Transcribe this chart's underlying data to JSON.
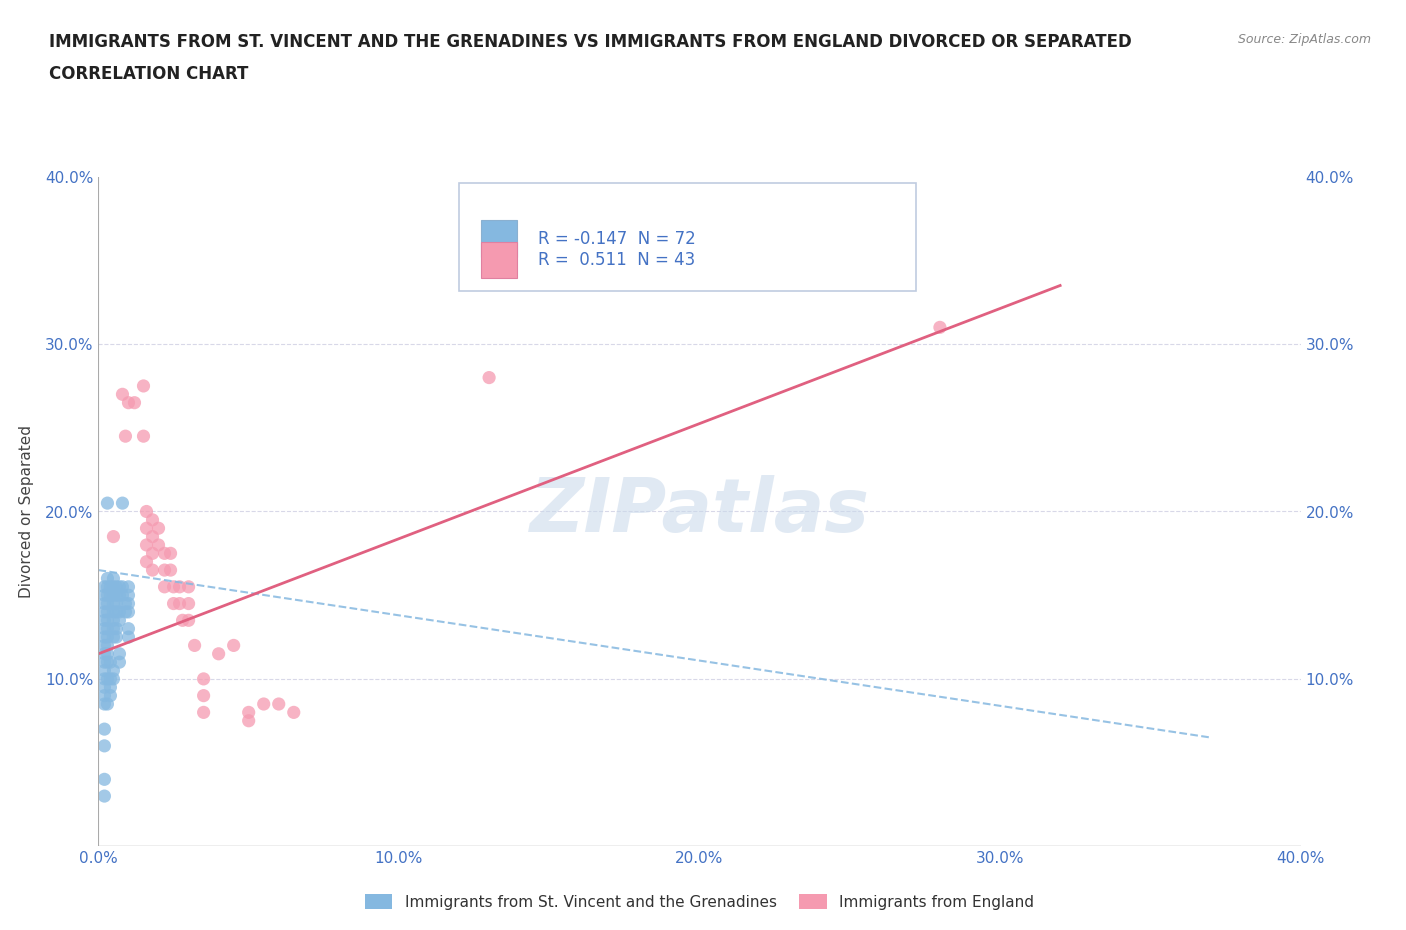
{
  "title_line1": "IMMIGRANTS FROM ST. VINCENT AND THE GRENADINES VS IMMIGRANTS FROM ENGLAND DIVORCED OR SEPARATED",
  "title_line2": "CORRELATION CHART",
  "source": "Source: ZipAtlas.com",
  "ylabel": "Divorced or Separated",
  "xlim": [
    0.0,
    0.4
  ],
  "ylim": [
    0.0,
    0.4
  ],
  "xticks": [
    0.0,
    0.1,
    0.2,
    0.3,
    0.4
  ],
  "yticks": [
    0.1,
    0.2,
    0.3,
    0.4
  ],
  "xticklabels": [
    "0.0%",
    "10.0%",
    "20.0%",
    "30.0%",
    "40.0%"
  ],
  "yticklabels": [
    "10.0%",
    "20.0%",
    "30.0%",
    "40.0%"
  ],
  "watermark": "ZIPatlas",
  "series1_label": "Immigrants from St. Vincent and the Grenadines",
  "series2_label": "Immigrants from England",
  "series1_color": "#85b8e0",
  "series2_color": "#f59ab0",
  "background_color": "#ffffff",
  "grid_color": "#d8d8e8",
  "axis_color": "#4472c4",
  "title_color": "#222222",
  "legend_box_color": "#e8eef8",
  "legend_border_color": "#b8c8e0",
  "series1_points": [
    [
      0.002,
      0.155
    ],
    [
      0.002,
      0.15
    ],
    [
      0.002,
      0.145
    ],
    [
      0.002,
      0.14
    ],
    [
      0.002,
      0.135
    ],
    [
      0.002,
      0.13
    ],
    [
      0.002,
      0.125
    ],
    [
      0.002,
      0.12
    ],
    [
      0.002,
      0.115
    ],
    [
      0.002,
      0.11
    ],
    [
      0.002,
      0.105
    ],
    [
      0.002,
      0.1
    ],
    [
      0.002,
      0.095
    ],
    [
      0.002,
      0.09
    ],
    [
      0.002,
      0.085
    ],
    [
      0.003,
      0.16
    ],
    [
      0.003,
      0.155
    ],
    [
      0.003,
      0.15
    ],
    [
      0.003,
      0.145
    ],
    [
      0.003,
      0.14
    ],
    [
      0.003,
      0.135
    ],
    [
      0.003,
      0.13
    ],
    [
      0.003,
      0.125
    ],
    [
      0.003,
      0.12
    ],
    [
      0.003,
      0.115
    ],
    [
      0.003,
      0.11
    ],
    [
      0.005,
      0.16
    ],
    [
      0.005,
      0.155
    ],
    [
      0.005,
      0.15
    ],
    [
      0.005,
      0.145
    ],
    [
      0.005,
      0.14
    ],
    [
      0.005,
      0.135
    ],
    [
      0.005,
      0.13
    ],
    [
      0.005,
      0.125
    ],
    [
      0.006,
      0.155
    ],
    [
      0.006,
      0.15
    ],
    [
      0.006,
      0.145
    ],
    [
      0.006,
      0.14
    ],
    [
      0.007,
      0.155
    ],
    [
      0.007,
      0.15
    ],
    [
      0.008,
      0.205
    ],
    [
      0.002,
      0.07
    ],
    [
      0.002,
      0.06
    ],
    [
      0.002,
      0.04
    ],
    [
      0.002,
      0.03
    ],
    [
      0.003,
      0.1
    ],
    [
      0.003,
      0.085
    ],
    [
      0.004,
      0.155
    ],
    [
      0.004,
      0.15
    ],
    [
      0.004,
      0.11
    ],
    [
      0.004,
      0.1
    ],
    [
      0.004,
      0.095
    ],
    [
      0.004,
      0.09
    ],
    [
      0.003,
      0.205
    ],
    [
      0.005,
      0.105
    ],
    [
      0.005,
      0.1
    ],
    [
      0.006,
      0.13
    ],
    [
      0.006,
      0.125
    ],
    [
      0.007,
      0.14
    ],
    [
      0.007,
      0.135
    ],
    [
      0.007,
      0.115
    ],
    [
      0.007,
      0.11
    ],
    [
      0.008,
      0.155
    ],
    [
      0.008,
      0.15
    ],
    [
      0.009,
      0.145
    ],
    [
      0.009,
      0.14
    ],
    [
      0.01,
      0.155
    ],
    [
      0.01,
      0.15
    ],
    [
      0.01,
      0.145
    ],
    [
      0.01,
      0.14
    ],
    [
      0.01,
      0.13
    ],
    [
      0.01,
      0.125
    ]
  ],
  "series2_points": [
    [
      0.005,
      0.185
    ],
    [
      0.008,
      0.27
    ],
    [
      0.009,
      0.245
    ],
    [
      0.01,
      0.265
    ],
    [
      0.012,
      0.265
    ],
    [
      0.015,
      0.245
    ],
    [
      0.015,
      0.275
    ],
    [
      0.016,
      0.2
    ],
    [
      0.016,
      0.19
    ],
    [
      0.016,
      0.18
    ],
    [
      0.016,
      0.17
    ],
    [
      0.018,
      0.195
    ],
    [
      0.018,
      0.185
    ],
    [
      0.018,
      0.175
    ],
    [
      0.018,
      0.165
    ],
    [
      0.02,
      0.19
    ],
    [
      0.02,
      0.18
    ],
    [
      0.022,
      0.175
    ],
    [
      0.022,
      0.165
    ],
    [
      0.022,
      0.155
    ],
    [
      0.024,
      0.175
    ],
    [
      0.024,
      0.165
    ],
    [
      0.025,
      0.155
    ],
    [
      0.025,
      0.145
    ],
    [
      0.027,
      0.155
    ],
    [
      0.027,
      0.145
    ],
    [
      0.028,
      0.135
    ],
    [
      0.03,
      0.155
    ],
    [
      0.03,
      0.145
    ],
    [
      0.03,
      0.135
    ],
    [
      0.032,
      0.12
    ],
    [
      0.035,
      0.1
    ],
    [
      0.035,
      0.09
    ],
    [
      0.035,
      0.08
    ],
    [
      0.04,
      0.115
    ],
    [
      0.045,
      0.12
    ],
    [
      0.05,
      0.08
    ],
    [
      0.05,
      0.075
    ],
    [
      0.055,
      0.085
    ],
    [
      0.06,
      0.085
    ],
    [
      0.065,
      0.08
    ],
    [
      0.13,
      0.28
    ],
    [
      0.28,
      0.31
    ]
  ],
  "series1_trendline": {
    "x_start": 0.0,
    "y_start": 0.165,
    "x_end": 0.37,
    "y_end": 0.065
  },
  "series2_trendline": {
    "x_start": 0.0,
    "y_start": 0.115,
    "x_end": 0.32,
    "y_end": 0.335
  },
  "dot_size": 90
}
